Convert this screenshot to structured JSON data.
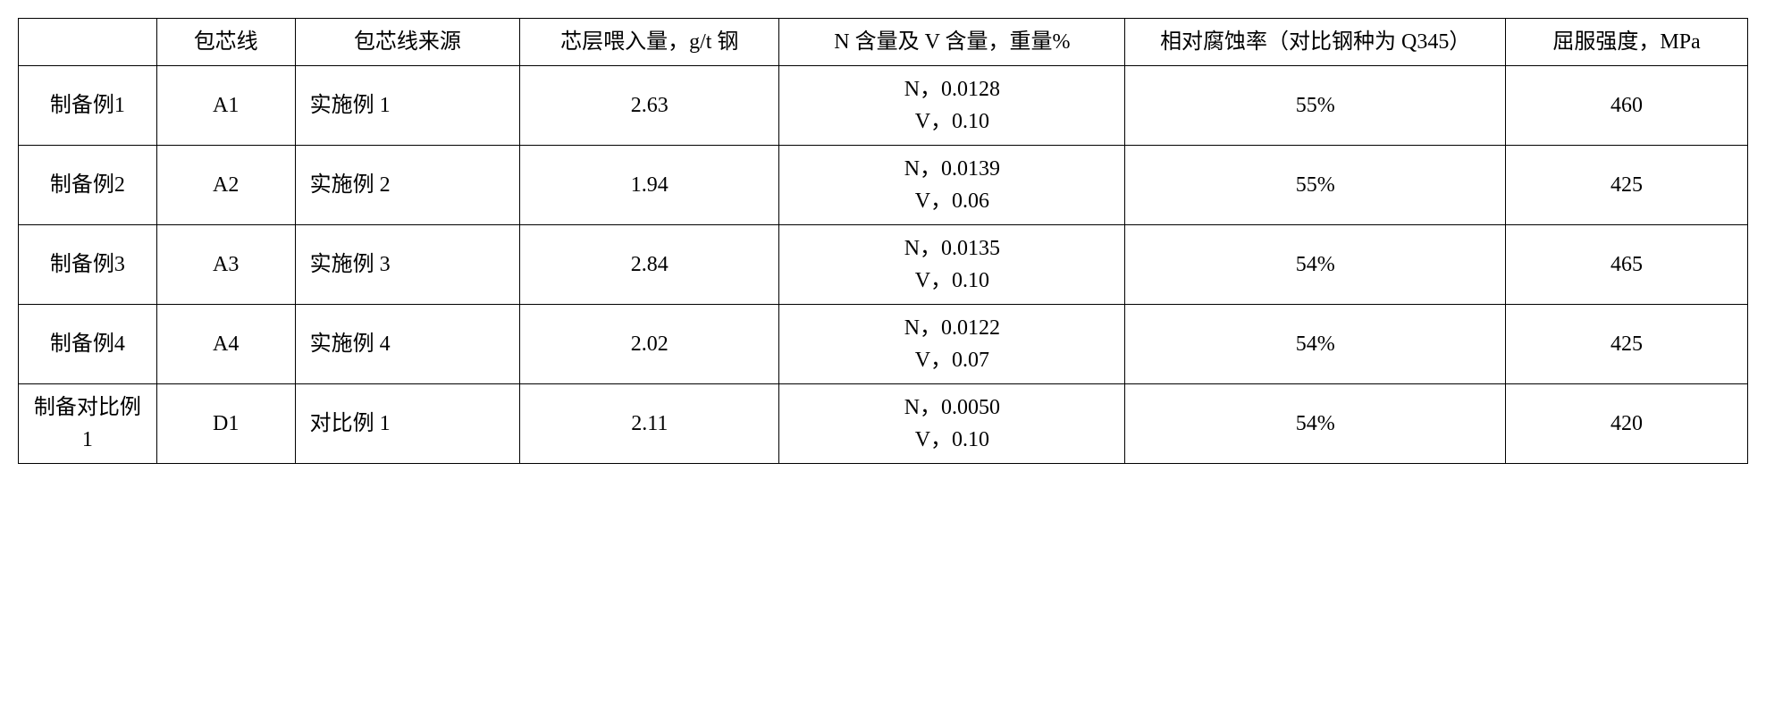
{
  "table": {
    "columns": [
      "",
      "包芯线",
      "包芯线来源",
      "芯层喂入量，g/t 钢",
      "N 含量及 V 含量，重量%",
      "相对腐蚀率（对比钢种为 Q345）",
      "屈服强度，MPa"
    ],
    "rows": [
      {
        "label": "制备例1",
        "core_wire": "A1",
        "source": "实施例 1",
        "feed_amount": "2.63",
        "nv_content": "N，0.0128\nV，0.10",
        "corrosion_rate": "55%",
        "yield_strength": "460"
      },
      {
        "label": "制备例2",
        "core_wire": "A2",
        "source": "实施例 2",
        "feed_amount": "1.94",
        "nv_content": "N，0.0139\nV，0.06",
        "corrosion_rate": "55%",
        "yield_strength": "425"
      },
      {
        "label": "制备例3",
        "core_wire": "A3",
        "source": "实施例 3",
        "feed_amount": "2.84",
        "nv_content": "N，0.0135\nV，0.10",
        "corrosion_rate": "54%",
        "yield_strength": "465"
      },
      {
        "label": "制备例4",
        "core_wire": "A4",
        "source": "实施例 4",
        "feed_amount": "2.02",
        "nv_content": "N，0.0122\nV，0.07",
        "corrosion_rate": "54%",
        "yield_strength": "425"
      },
      {
        "label": "制备对比例 1",
        "core_wire": "D1",
        "source": "对比例 1",
        "feed_amount": "2.11",
        "nv_content": "N，0.0050\nV，0.10",
        "corrosion_rate": "54%",
        "yield_strength": "420"
      }
    ]
  }
}
